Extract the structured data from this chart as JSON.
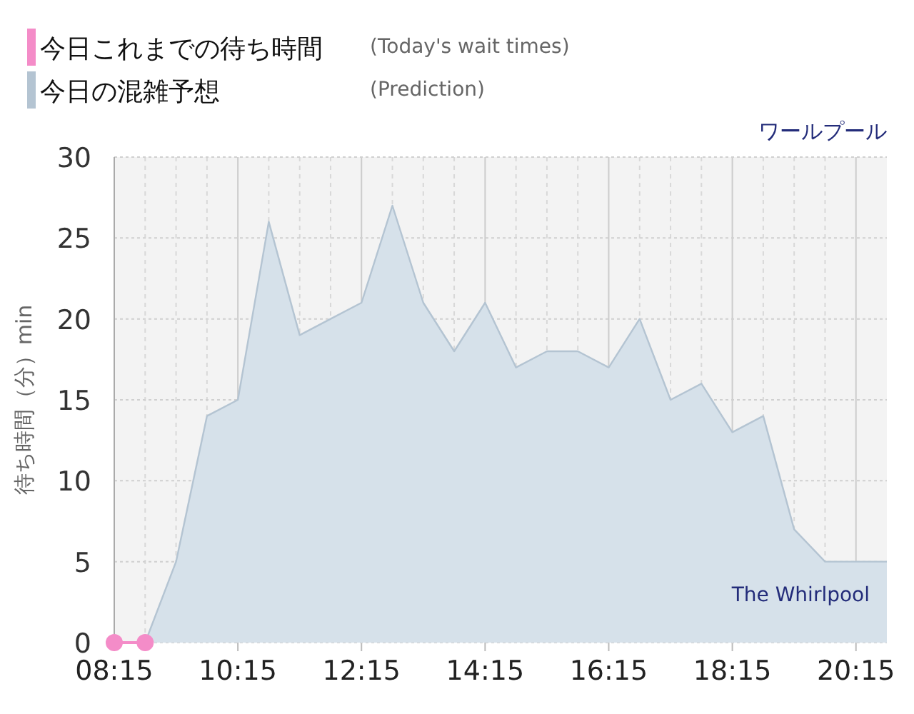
{
  "chart_data": {
    "type": "area",
    "title": "ワールプール",
    "ylabel": "待ち時間（分）min",
    "annotations": [
      "(Today's wait times)",
      "(Prediction)",
      "The Whirlpool"
    ],
    "series": [
      {
        "name": "今日これまでの待ち時間",
        "type": "line",
        "color": "#f48cc8",
        "marker": "circle",
        "x": [
          8.25,
          8.75
        ],
        "values": [
          0,
          0
        ]
      },
      {
        "name": "今日の混雑予想",
        "color": "#b4c4d2",
        "marker": "none",
        "x": [
          8.75,
          9.25,
          9.75,
          10.25,
          10.75,
          11.25,
          11.75,
          12.25,
          12.75,
          13.25,
          13.75,
          14.25,
          14.75,
          15.25,
          15.75,
          16.25,
          16.75,
          17.25,
          17.75,
          18.25,
          18.75,
          19.25,
          19.75,
          20.25,
          20.75
        ],
        "values": [
          0,
          5,
          14,
          15,
          26,
          19,
          20,
          21,
          27,
          21,
          18,
          21,
          17,
          18,
          18,
          17,
          20,
          15,
          16,
          13,
          14,
          7,
          5,
          5,
          5
        ]
      }
    ],
    "xlim": [
      8.25,
      20.75
    ],
    "ylim": [
      0,
      30
    ],
    "xticks": [
      {
        "value": 8.25,
        "label": "08:15"
      },
      {
        "value": 8.75,
        "label": null
      },
      {
        "value": 9.25,
        "label": null
      },
      {
        "value": 9.75,
        "label": null
      },
      {
        "value": 10.25,
        "label": "10:15"
      },
      {
        "value": 10.75,
        "label": null
      },
      {
        "value": 11.25,
        "label": null
      },
      {
        "value": 11.75,
        "label": null
      },
      {
        "value": 12.25,
        "label": "12:15"
      },
      {
        "value": 12.75,
        "label": null
      },
      {
        "value": 13.25,
        "label": null
      },
      {
        "value": 13.75,
        "label": null
      },
      {
        "value": 14.25,
        "label": "14:15"
      },
      {
        "value": 14.75,
        "label": null
      },
      {
        "value": 15.25,
        "label": null
      },
      {
        "value": 15.75,
        "label": null
      },
      {
        "value": 16.25,
        "label": "16:15"
      },
      {
        "value": 16.75,
        "label": null
      },
      {
        "value": 17.25,
        "label": null
      },
      {
        "value": 17.75,
        "label": null
      },
      {
        "value": 18.25,
        "label": "18:15"
      },
      {
        "value": 18.75,
        "label": null
      },
      {
        "value": 19.25,
        "label": null
      },
      {
        "value": 19.75,
        "label": null
      },
      {
        "value": 20.25,
        "label": "20:15"
      }
    ],
    "yticks": [
      0,
      5,
      10,
      15,
      20,
      25,
      30
    ],
    "grid": true,
    "legend": "top left"
  }
}
